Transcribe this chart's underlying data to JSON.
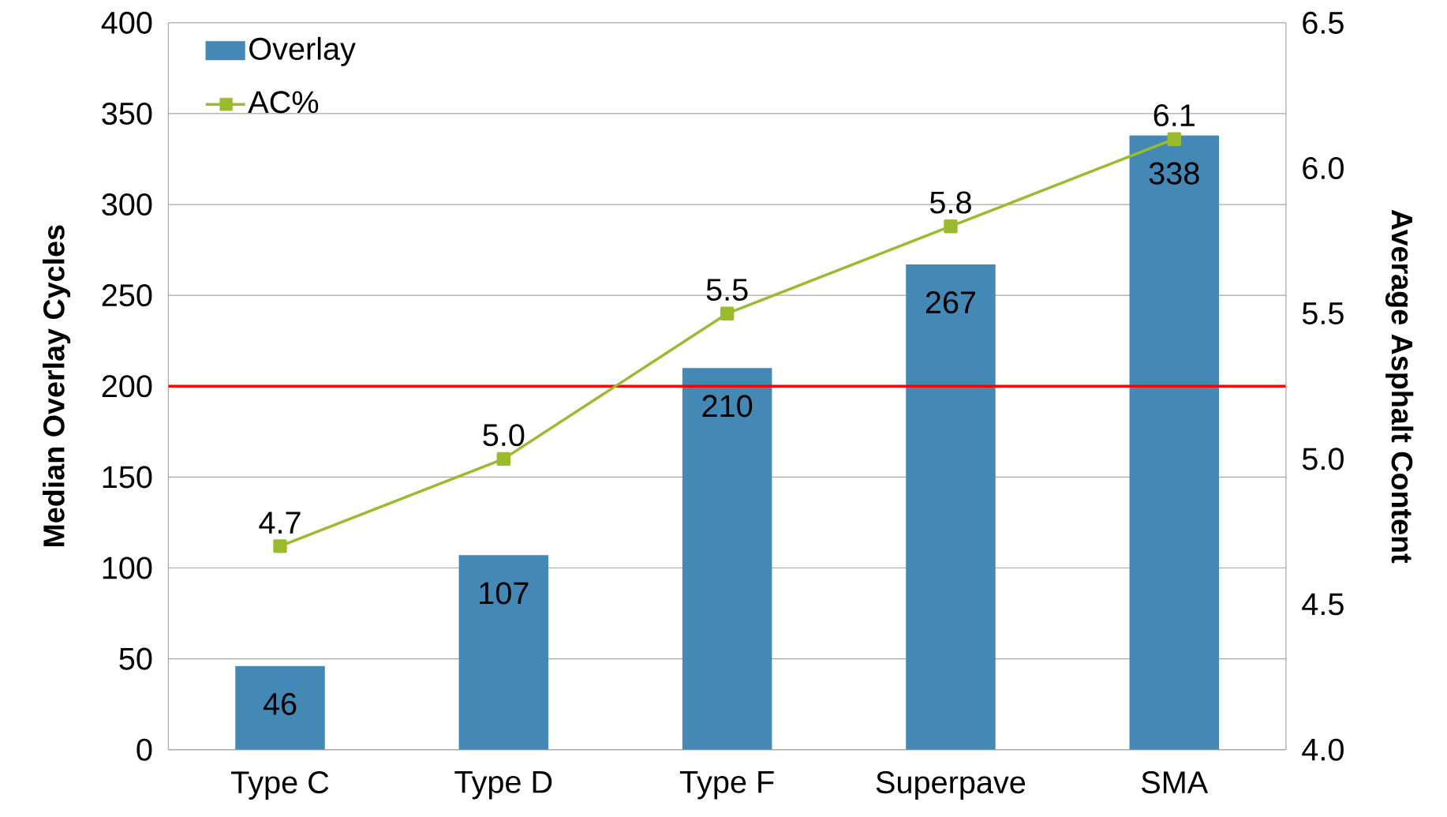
{
  "chart_data": {
    "type": "bar",
    "xlabel": null,
    "ylabel": "Median Overlay Cycles",
    "y2label": "Average Asphalt Content",
    "categories": [
      "Type C",
      "Type D",
      "Type F",
      "Superpave",
      "SMA"
    ],
    "series": [
      {
        "name": "Overlay",
        "color": "#4489b6",
        "values": [
          46,
          107,
          210,
          267,
          338
        ],
        "value_labels": [
          "46",
          "107",
          "210",
          "267",
          "338"
        ]
      },
      {
        "name": "AC%",
        "type": "line",
        "axis": "y2",
        "color": "#9bbb2f",
        "marker": "square",
        "values": [
          4.7,
          5.0,
          5.5,
          5.8,
          6.1
        ],
        "value_labels": [
          "4.7",
          "5.0",
          "5.5",
          "5.8",
          "6.1"
        ]
      }
    ],
    "ylim": [
      0,
      400
    ],
    "yticks": [
      0,
      50,
      100,
      150,
      200,
      250,
      300,
      350,
      400
    ],
    "y2lim": [
      4.0,
      6.5
    ],
    "y2ticks": [
      {
        "value": 4.0,
        "label": "4.0"
      },
      {
        "value": 4.5,
        "label": "4.5"
      },
      {
        "value": 5.0,
        "label": "5.0"
      },
      {
        "value": 5.5,
        "label": "5.5"
      },
      {
        "value": 6.0,
        "label": "6.0"
      },
      {
        "value": 6.5,
        "label": "6.5"
      }
    ],
    "ref_lines": [
      {
        "axis": "y",
        "value": 200,
        "color": "#ff0000"
      }
    ],
    "grid": "y",
    "legend": "top left"
  }
}
